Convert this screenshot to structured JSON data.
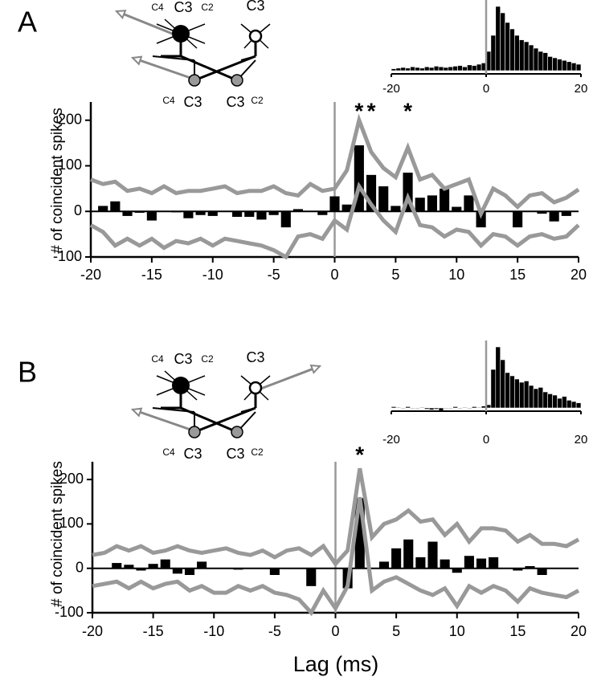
{
  "panel_labels": [
    "A",
    "B"
  ],
  "diagrams": [
    {
      "top": [
        "C4",
        "C3",
        "C2",
        "C3"
      ],
      "bottom": [
        "C4",
        "C3",
        "C3",
        "C2"
      ]
    },
    {
      "top": [
        "C4",
        "C3",
        "C2",
        "C3"
      ],
      "bottom": [
        "C4",
        "C3",
        "C3",
        "C2"
      ]
    }
  ],
  "chart_data": [
    {
      "type": "bar",
      "y_label": "# of coincident spikes",
      "xlim": [
        -20,
        20
      ],
      "xticks": [
        -20,
        -15,
        -10,
        -5,
        0,
        5,
        10,
        15,
        20
      ],
      "ylim": [
        -100,
        240
      ],
      "yticks": [
        -100,
        0,
        100,
        200
      ],
      "annotations": [
        {
          "text": "*",
          "x": 2
        },
        {
          "text": "*",
          "x": 3
        },
        {
          "text": "*",
          "x": 6
        }
      ],
      "series": [
        {
          "type": "bar",
          "color": "#000000",
          "x": [
            -19,
            -18,
            -17,
            -16,
            -15,
            -14,
            -13,
            -12,
            -11,
            -10,
            -9,
            -8,
            -7,
            -6,
            -5,
            -4,
            -3,
            -2,
            -1,
            0,
            1,
            2,
            3,
            4,
            5,
            6,
            7,
            8,
            9,
            10,
            11,
            12,
            13,
            14,
            15,
            16,
            17,
            18,
            19
          ],
          "values": [
            12,
            22,
            -10,
            -3,
            -20,
            0,
            -2,
            -15,
            -8,
            -10,
            0,
            -12,
            -12,
            -18,
            -8,
            -35,
            5,
            0,
            -8,
            33,
            15,
            145,
            80,
            55,
            12,
            85,
            30,
            35,
            50,
            10,
            35,
            -35,
            0,
            0,
            -35,
            0,
            -5,
            -22,
            -10
          ]
        },
        {
          "type": "line",
          "color": "#999999",
          "x": [
            -20,
            -19,
            -18,
            -17,
            -16,
            -15,
            -14,
            -13,
            -12,
            -11,
            -10,
            -9,
            -8,
            -7,
            -6,
            -5,
            -4,
            -3,
            -2,
            -1,
            0,
            1,
            2,
            3,
            4,
            5,
            6,
            7,
            8,
            9,
            10,
            11,
            12,
            13,
            14,
            15,
            16,
            17,
            18,
            19,
            20
          ],
          "values": [
            70,
            60,
            65,
            45,
            50,
            40,
            55,
            40,
            45,
            45,
            50,
            55,
            40,
            45,
            45,
            55,
            40,
            35,
            60,
            45,
            50,
            90,
            200,
            130,
            95,
            75,
            140,
            70,
            80,
            50,
            60,
            70,
            -5,
            50,
            35,
            10,
            35,
            40,
            20,
            30,
            48
          ]
        },
        {
          "type": "line",
          "color": "#999999",
          "x": [
            -20,
            -19,
            -18,
            -17,
            -16,
            -15,
            -14,
            -13,
            -12,
            -11,
            -10,
            -9,
            -8,
            -7,
            -6,
            -5,
            -4,
            -3,
            -2,
            -1,
            0,
            1,
            2,
            3,
            4,
            5,
            6,
            7,
            8,
            9,
            10,
            11,
            12,
            13,
            14,
            15,
            16,
            17,
            18,
            19,
            20
          ],
          "values": [
            -30,
            -45,
            -75,
            -60,
            -75,
            -60,
            -80,
            -65,
            -70,
            -60,
            -75,
            -60,
            -65,
            -70,
            -75,
            -85,
            -100,
            -55,
            -50,
            -60,
            -20,
            -40,
            55,
            15,
            -20,
            -45,
            30,
            -30,
            -35,
            -55,
            -40,
            -45,
            -75,
            -50,
            -55,
            -75,
            -55,
            -50,
            -60,
            -55,
            -30
          ]
        }
      ]
    },
    {
      "type": "histogram",
      "color": "#000000",
      "xlim": [
        -20,
        20
      ],
      "xticks": [
        -20,
        0,
        20
      ],
      "bins": [
        -20,
        -19,
        -18,
        -17,
        -16,
        -15,
        -14,
        -13,
        -12,
        -11,
        -10,
        -9,
        -8,
        -7,
        -6,
        -5,
        -4,
        -3,
        -2,
        -1,
        0,
        1,
        2,
        3,
        4,
        5,
        6,
        7,
        8,
        9,
        10,
        11,
        12,
        13,
        14,
        15,
        16,
        17,
        18,
        19,
        20
      ],
      "values": [
        3,
        4,
        5,
        4,
        6,
        5,
        4,
        6,
        5,
        7,
        6,
        5,
        6,
        7,
        8,
        6,
        9,
        8,
        10,
        12,
        30,
        55,
        100,
        90,
        75,
        65,
        55,
        48,
        45,
        40,
        35,
        30,
        28,
        22,
        20,
        18,
        16,
        14,
        12,
        10
      ]
    },
    {
      "type": "bar",
      "y_label": "# of coincident spikes",
      "x_label": "Lag (ms)",
      "xlim": [
        -20,
        20
      ],
      "xticks": [
        -20,
        -15,
        -10,
        -5,
        0,
        5,
        10,
        15,
        20
      ],
      "ylim": [
        -100,
        240
      ],
      "yticks": [
        -100,
        0,
        100,
        200
      ],
      "annotations": [
        {
          "text": "*",
          "x": 2
        }
      ],
      "series": [
        {
          "type": "bar",
          "color": "#000000",
          "x": [
            -19,
            -18,
            -17,
            -16,
            -15,
            -14,
            -13,
            -12,
            -11,
            -10,
            -9,
            -8,
            -7,
            -6,
            -5,
            -4,
            -3,
            -2,
            -1,
            0,
            1,
            2,
            3,
            4,
            5,
            6,
            7,
            8,
            9,
            10,
            11,
            12,
            13,
            14,
            15,
            16,
            17,
            18,
            19
          ],
          "values": [
            0,
            12,
            8,
            -5,
            10,
            20,
            -12,
            -15,
            15,
            0,
            0,
            -3,
            0,
            0,
            -15,
            0,
            0,
            -40,
            0,
            0,
            -45,
            158,
            0,
            15,
            45,
            65,
            25,
            60,
            20,
            -10,
            28,
            22,
            25,
            0,
            -5,
            5,
            -15,
            0,
            0
          ]
        },
        {
          "type": "line",
          "color": "#999999",
          "x": [
            -20,
            -19,
            -18,
            -17,
            -16,
            -15,
            -14,
            -13,
            -12,
            -11,
            -10,
            -9,
            -8,
            -7,
            -6,
            -5,
            -4,
            -3,
            -2,
            -1,
            0,
            1,
            2,
            3,
            4,
            5,
            6,
            7,
            8,
            9,
            10,
            11,
            12,
            13,
            14,
            15,
            16,
            17,
            18,
            19,
            20
          ],
          "values": [
            30,
            35,
            50,
            40,
            50,
            35,
            40,
            50,
            40,
            35,
            40,
            45,
            35,
            30,
            40,
            25,
            40,
            45,
            30,
            50,
            10,
            40,
            225,
            70,
            100,
            110,
            130,
            105,
            110,
            75,
            100,
            60,
            90,
            90,
            85,
            60,
            75,
            55,
            55,
            50,
            65
          ]
        },
        {
          "type": "line",
          "color": "#999999",
          "x": [
            -20,
            -19,
            -18,
            -17,
            -16,
            -15,
            -14,
            -13,
            -12,
            -11,
            -10,
            -9,
            -8,
            -7,
            -6,
            -5,
            -4,
            -3,
            -2,
            -1,
            0,
            1,
            2,
            3,
            4,
            5,
            6,
            7,
            8,
            9,
            10,
            11,
            12,
            13,
            14,
            15,
            16,
            17,
            18,
            19,
            20
          ],
          "values": [
            -40,
            -35,
            -30,
            -45,
            -30,
            -45,
            -35,
            -30,
            -50,
            -40,
            -55,
            -55,
            -40,
            -50,
            -40,
            -55,
            -60,
            -70,
            -100,
            -50,
            -90,
            -40,
            160,
            -50,
            -30,
            -20,
            -35,
            -50,
            -60,
            -45,
            -85,
            -40,
            -55,
            -40,
            -50,
            -75,
            -45,
            -55,
            -60,
            -65,
            -50
          ]
        }
      ]
    },
    {
      "type": "histogram",
      "color": "#000000",
      "xlim": [
        -20,
        20
      ],
      "xticks": [
        -20,
        0,
        20
      ],
      "bins": [
        -20,
        -19,
        -18,
        -17,
        -16,
        -15,
        -14,
        -13,
        -12,
        -11,
        -10,
        -9,
        -8,
        -7,
        -6,
        -5,
        -4,
        -3,
        -2,
        -1,
        0,
        1,
        2,
        3,
        4,
        5,
        6,
        7,
        8,
        9,
        10,
        11,
        12,
        13,
        14,
        15,
        16,
        17,
        18,
        19,
        20
      ],
      "values": [
        2,
        1,
        -1,
        2,
        0,
        -1,
        1,
        -2,
        -3,
        -2,
        -4,
        -1,
        0,
        2,
        -1,
        1,
        0,
        2,
        1,
        3,
        5,
        60,
        95,
        75,
        55,
        50,
        45,
        40,
        42,
        35,
        30,
        32,
        25,
        22,
        20,
        15,
        18,
        12,
        10,
        8
      ]
    }
  ]
}
